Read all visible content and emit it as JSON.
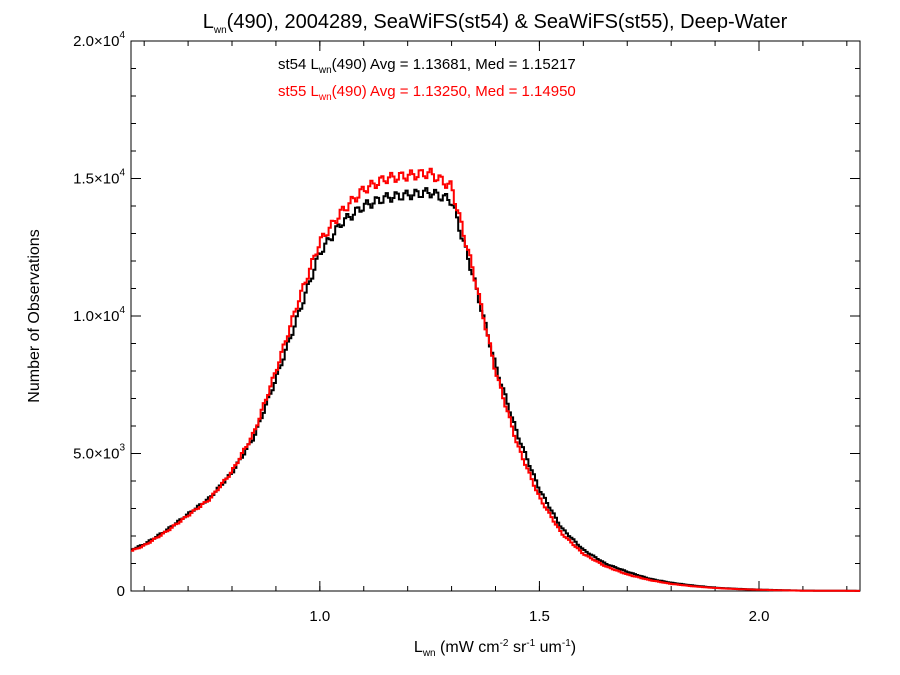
{
  "chart_data": {
    "type": "line",
    "step": true,
    "title": {
      "prefix": "L",
      "sub": "wn",
      "rest": "(490), 2004289, SeaWiFS(st54) & SeaWiFS(st55), Deep-Water"
    },
    "xlabel": {
      "prefix": "L",
      "sub": "wn",
      "parts": [
        {
          "t": " (mW cm"
        },
        {
          "sup": "-2"
        },
        {
          "t": " sr"
        },
        {
          "sup": "-1"
        },
        {
          "t": " um"
        },
        {
          "sup": "-1"
        },
        {
          "t": ")"
        }
      ]
    },
    "ylabel": "Number of Observations",
    "xlim": [
      0.57,
      2.23
    ],
    "ylim": [
      0,
      20000
    ],
    "x_ticks": [
      {
        "v": 1.0,
        "label": "1.0"
      },
      {
        "v": 1.5,
        "label": "1.5"
      },
      {
        "v": 2.0,
        "label": "2.0"
      }
    ],
    "y_ticks": [
      {
        "v": 0,
        "mant": "0",
        "exp": ""
      },
      {
        "v": 5000,
        "mant": "5.0×10",
        "exp": "3"
      },
      {
        "v": 10000,
        "mant": "1.0×10",
        "exp": "4"
      },
      {
        "v": 15000,
        "mant": "1.5×10",
        "exp": "4"
      },
      {
        "v": 20000,
        "mant": "2.0×10",
        "exp": "4"
      }
    ],
    "legend": [
      {
        "color": "#000000",
        "prefix": "st54 L",
        "sub": "wn",
        "rest": "(490) Avg = 1.13681, Med = 1.15217"
      },
      {
        "color": "#ff0000",
        "prefix": "st55 L",
        "sub": "wn",
        "rest": "(490) Avg = 1.13250, Med = 1.14950"
      }
    ],
    "bin_width": 0.005,
    "series": [
      {
        "name": "st54",
        "color": "#000000",
        "x": [
          0.57,
          0.6,
          0.65,
          0.7,
          0.75,
          0.8,
          0.85,
          0.9,
          0.95,
          1.0,
          1.05,
          1.1,
          1.15,
          1.2,
          1.25,
          1.3,
          1.35,
          1.4,
          1.45,
          1.5,
          1.55,
          1.6,
          1.65,
          1.7,
          1.75,
          1.8,
          1.85,
          1.9,
          1.95,
          2.0,
          2.05,
          2.1,
          2.15,
          2.23
        ],
        "y": [
          1500,
          1700,
          2200,
          2800,
          3400,
          4300,
          5600,
          7700,
          10000,
          12300,
          13400,
          14000,
          14300,
          14400,
          14500,
          14200,
          11400,
          8200,
          5700,
          3700,
          2300,
          1500,
          1000,
          700,
          450,
          300,
          200,
          120,
          80,
          50,
          30,
          15,
          10,
          5
        ]
      },
      {
        "name": "st55",
        "color": "#ff0000",
        "x": [
          0.57,
          0.6,
          0.65,
          0.7,
          0.75,
          0.8,
          0.85,
          0.9,
          0.95,
          1.0,
          1.05,
          1.1,
          1.15,
          1.2,
          1.25,
          1.3,
          1.35,
          1.4,
          1.45,
          1.5,
          1.55,
          1.6,
          1.65,
          1.7,
          1.75,
          1.8,
          1.85,
          1.9,
          1.95,
          2.0,
          2.05,
          2.1,
          2.15,
          2.23
        ],
        "y": [
          1450,
          1650,
          2150,
          2750,
          3350,
          4350,
          5750,
          8000,
          10500,
          12700,
          13800,
          14600,
          15000,
          15100,
          15200,
          14700,
          11600,
          8000,
          5300,
          3400,
          2100,
          1350,
          900,
          600,
          400,
          260,
          170,
          110,
          70,
          45,
          25,
          12,
          8,
          4
        ]
      }
    ]
  }
}
